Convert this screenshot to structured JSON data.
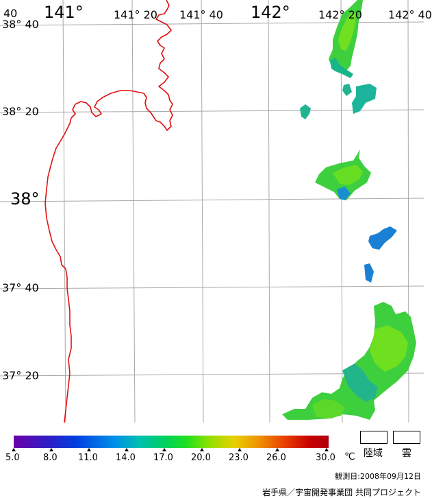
{
  "map": {
    "graticule": {
      "longitude_labels": [
        {
          "text": "40",
          "kind": "minor"
        },
        {
          "text": "141°",
          "kind": "major"
        },
        {
          "text": "141° 20",
          "kind": "minor"
        },
        {
          "text": "141° 40",
          "kind": "minor"
        },
        {
          "text": "142°",
          "kind": "major"
        },
        {
          "text": "142° 20",
          "kind": "minor"
        },
        {
          "text": "142° 40",
          "kind": "minor"
        }
      ],
      "latitude_labels": [
        {
          "text": "38° 40",
          "kind": "minor"
        },
        {
          "text": "38° 20",
          "kind": "minor"
        },
        {
          "text": "38°",
          "kind": "major"
        },
        {
          "text": "37° 40",
          "kind": "minor"
        },
        {
          "text": "37° 20",
          "kind": "minor"
        }
      ],
      "line_color": "#a8a8a8"
    },
    "coastline_color": "#e01010"
  },
  "legend": {
    "colorbar": {
      "min": 5.0,
      "max": 30.0,
      "ticks": [
        "5.0",
        "8.0",
        "11.0",
        "14.0",
        "17.0",
        "20.0",
        "23.0",
        "26.0",
        "30.0"
      ],
      "unit": "℃"
    },
    "land_label": "陸域",
    "cloud_label": "雲"
  },
  "observation_date": "観測日:2008年09月12日",
  "credit": "岩手県／宇宙開発事業団 共同プロジェクト"
}
